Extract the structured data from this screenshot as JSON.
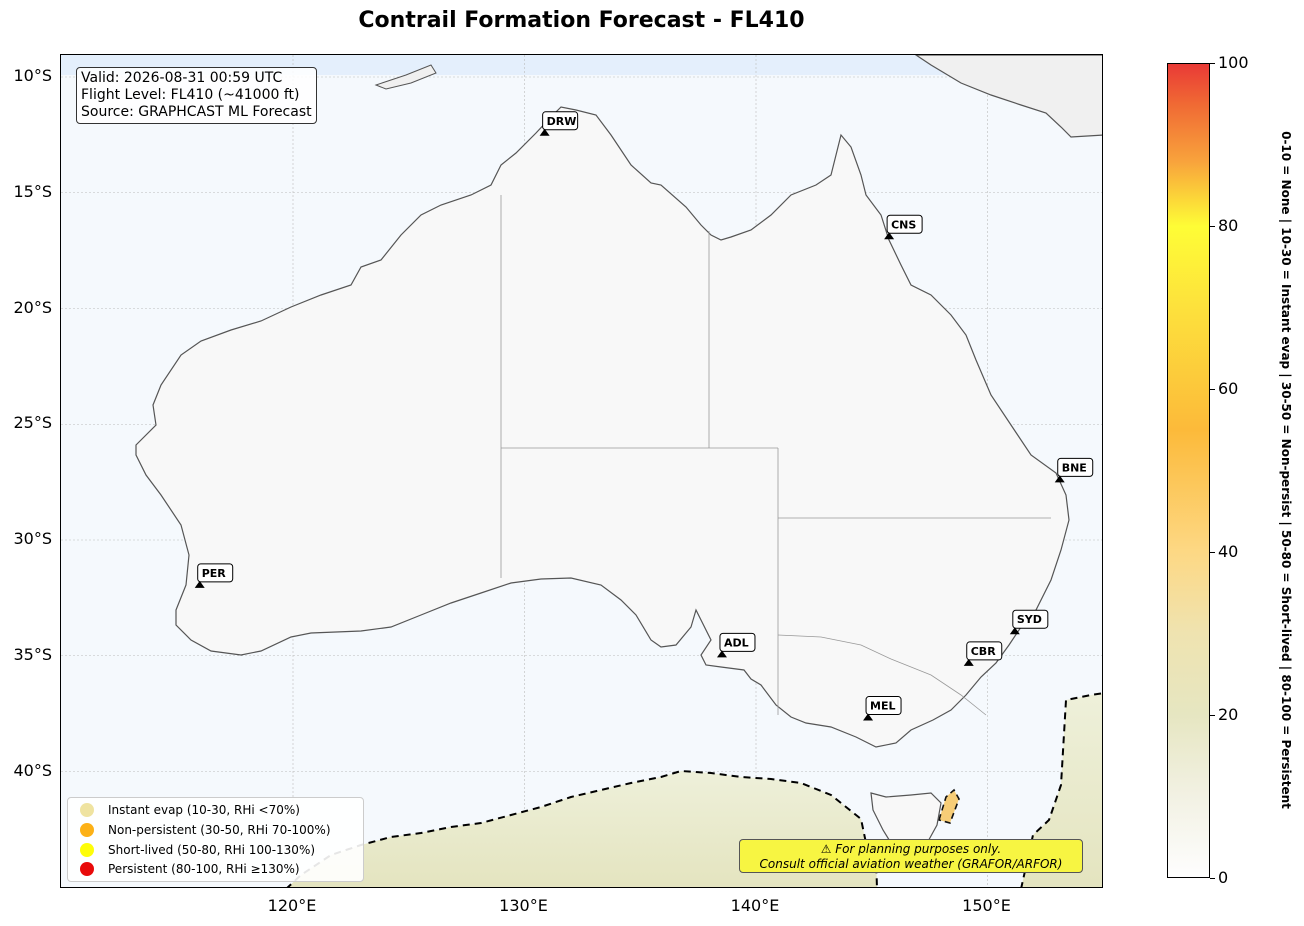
{
  "title": "Contrail Formation Forecast - FL410",
  "info_box": {
    "valid": "Valid: 2026-08-31 00:59 UTC",
    "flight_level": "Flight Level: FL410 (~41000 ft)",
    "source": "Source: GRAPHCAST ML Forecast"
  },
  "map": {
    "lon_range": [
      110,
      155
    ],
    "lat_range": [
      -45,
      -9
    ],
    "x_ticks": [
      {
        "lon": 120,
        "label": "120°E"
      },
      {
        "lon": 130,
        "label": "130°E"
      },
      {
        "lon": 140,
        "label": "140°E"
      },
      {
        "lon": 150,
        "label": "150°E"
      }
    ],
    "y_ticks": [
      {
        "lat": -10,
        "label": "10°S"
      },
      {
        "lat": -15,
        "label": "15°S"
      },
      {
        "lat": -20,
        "label": "20°S"
      },
      {
        "lat": -25,
        "label": "25°S"
      },
      {
        "lat": -30,
        "label": "30°S"
      },
      {
        "lat": -35,
        "label": "35°S"
      },
      {
        "lat": -40,
        "label": "40°S"
      }
    ],
    "airports": [
      {
        "code": "DRW",
        "lon": 130.87,
        "lat": -12.41
      },
      {
        "code": "CNS",
        "lon": 145.75,
        "lat": -16.88
      },
      {
        "code": "BNE",
        "lon": 153.12,
        "lat": -27.38
      },
      {
        "code": "PER",
        "lon": 115.97,
        "lat": -31.94
      },
      {
        "code": "ADL",
        "lon": 138.53,
        "lat": -34.94
      },
      {
        "code": "SYD",
        "lon": 151.18,
        "lat": -33.94
      },
      {
        "code": "CBR",
        "lon": 149.19,
        "lat": -35.31
      },
      {
        "code": "MEL",
        "lon": 144.84,
        "lat": -37.67
      }
    ],
    "colors": {
      "ocean": "#f5f9fd",
      "land": "#f8f8f8",
      "coast": "#555555",
      "contrail_low": "#e6e6c1",
      "contrail_mid": "#f5c969"
    }
  },
  "legend": [
    {
      "label": "Instant evap (10-30, RHi <70%)",
      "color": "#efe3a0"
    },
    {
      "label": "Non-persistent (30-50, RHi 70-100%)",
      "color": "#fcb116"
    },
    {
      "label": "Short-lived (50-80, RHi 100-130%)",
      "color": "#fefd09"
    },
    {
      "label": "Persistent (80-100, RHi ≥130%)",
      "color": "#e80a0a"
    }
  ],
  "disclaimer": {
    "line1": "⚠ For planning purposes only.",
    "line2": "Consult official aviation weather (GRAFOR/ARFOR)"
  },
  "colorbar": {
    "min": 0,
    "max": 100,
    "ticks": [
      0,
      20,
      40,
      60,
      80,
      100
    ],
    "label": "0-10 = None  |  10-30 = Instant evap  |  30-50 = Non-persist  |  50-80 = Short-lived  |  80-100 = Persistent"
  }
}
